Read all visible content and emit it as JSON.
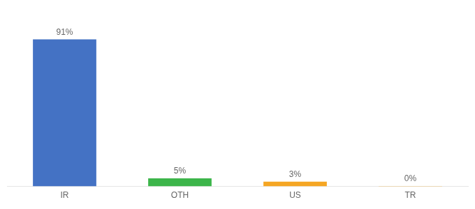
{
  "chart_data": {
    "type": "bar",
    "categories": [
      "IR",
      "OTH",
      "US",
      "TR"
    ],
    "values": [
      91,
      5,
      3,
      0.3
    ],
    "value_labels": [
      "91%",
      "5%",
      "3%",
      "0%"
    ],
    "colors": [
      "#4472c4",
      "#3cb54a",
      "#f5a623",
      "#f5a623"
    ],
    "ylim": [
      0,
      105
    ],
    "grid": false,
    "data_labels": true,
    "tick_labels": "x"
  }
}
